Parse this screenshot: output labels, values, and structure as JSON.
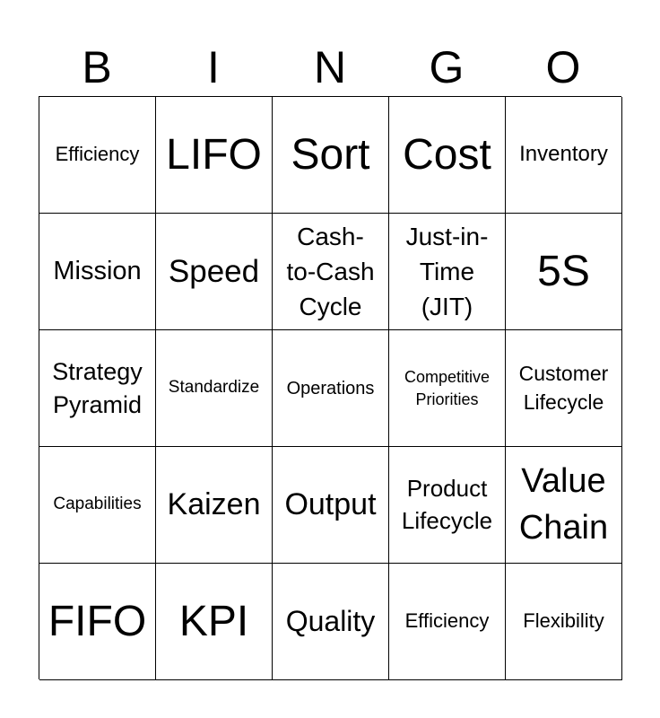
{
  "header": [
    "B",
    "I",
    "N",
    "G",
    "O"
  ],
  "cells": [
    [
      "Efficiency",
      "LIFO",
      "Sort",
      "Cost",
      "Inventory"
    ],
    [
      "Mission",
      "Speed",
      "Cash-\nto-Cash\nCycle",
      "Just-in-\nTime\n(JIT)",
      "5S"
    ],
    [
      "Strategy\nPyramid",
      "Standardize",
      "Operations",
      "Competitive\nPriorities",
      "Customer\nLifecycle"
    ],
    [
      "Capabilities",
      "Kaizen",
      "Output",
      "Product\nLifecycle",
      "Value\nChain"
    ],
    [
      "FIFO",
      "KPI",
      "Quality",
      "Efficiency",
      "Flexibility"
    ]
  ]
}
